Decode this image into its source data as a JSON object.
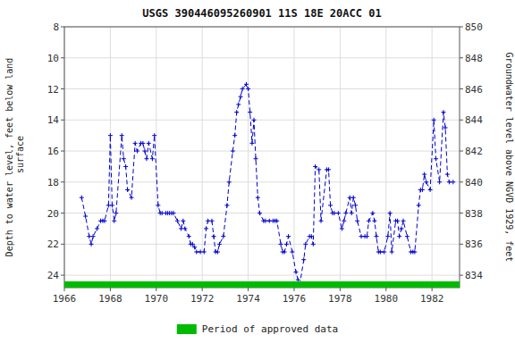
{
  "chart_data": {
    "type": "line",
    "title": "USGS 390446095260901 11S 18E 20ACC 01",
    "y_label": "Depth to water level, feet below land\n surface",
    "y2_label": "Groundwater level above NGVD 1929, feet",
    "xlim": [
      1966,
      1983.2
    ],
    "xticks": [
      1966,
      1968,
      1970,
      1972,
      1974,
      1976,
      1978,
      1980,
      1982
    ],
    "ylim": [
      24.8,
      8
    ],
    "yticks": [
      8,
      10,
      12,
      14,
      16,
      18,
      20,
      22,
      24
    ],
    "y2lim": [
      833.2,
      850
    ],
    "y2ticks": [
      834,
      836,
      838,
      840,
      842,
      844,
      846,
      848,
      850
    ],
    "grid": true,
    "legend": "bottom",
    "x": [
      1966.75,
      1966.92,
      1967.08,
      1967.17,
      1967.25,
      1967.42,
      1967.58,
      1967.67,
      1967.75,
      1967.92,
      1968.0,
      1968.08,
      1968.17,
      1968.25,
      1968.5,
      1968.58,
      1968.67,
      1968.75,
      1968.92,
      1969.08,
      1969.17,
      1969.33,
      1969.42,
      1969.5,
      1969.58,
      1969.67,
      1969.83,
      1969.92,
      1970.08,
      1970.17,
      1970.25,
      1970.42,
      1970.5,
      1970.58,
      1970.67,
      1970.75,
      1970.92,
      1971.08,
      1971.17,
      1971.25,
      1971.42,
      1971.5,
      1971.58,
      1971.67,
      1971.75,
      1971.92,
      1972.08,
      1972.17,
      1972.25,
      1972.42,
      1972.5,
      1972.58,
      1972.67,
      1972.75,
      1972.92,
      1973.08,
      1973.17,
      1973.33,
      1973.42,
      1973.5,
      1973.58,
      1973.67,
      1973.75,
      1973.92,
      1974.0,
      1974.08,
      1974.17,
      1974.25,
      1974.33,
      1974.42,
      1974.5,
      1974.67,
      1974.75,
      1974.92,
      1975.08,
      1975.17,
      1975.25,
      1975.42,
      1975.5,
      1975.58,
      1975.67,
      1975.75,
      1975.92,
      1976.08,
      1976.17,
      1976.25,
      1976.42,
      1976.5,
      1976.67,
      1976.75,
      1976.83,
      1976.92,
      1977.08,
      1977.17,
      1977.42,
      1977.5,
      1977.58,
      1977.67,
      1977.75,
      1977.92,
      1978.08,
      1978.17,
      1978.25,
      1978.42,
      1978.5,
      1978.58,
      1978.67,
      1978.75,
      1978.92,
      1979.08,
      1979.17,
      1979.25,
      1979.42,
      1979.5,
      1979.58,
      1979.67,
      1979.75,
      1979.92,
      1980.08,
      1980.17,
      1980.25,
      1980.42,
      1980.5,
      1980.58,
      1980.67,
      1980.75,
      1980.92,
      1981.08,
      1981.17,
      1981.25,
      1981.42,
      1981.5,
      1981.58,
      1981.67,
      1981.75,
      1981.92,
      1982.08,
      1982.17,
      1982.33,
      1982.5,
      1982.58,
      1982.67,
      1982.75,
      1982.92
    ],
    "series": [
      {
        "color": "#0000cc",
        "marker": "plus",
        "line_style": "dashed",
        "values": [
          19.0,
          20.2,
          21.5,
          22.0,
          21.5,
          21.0,
          20.5,
          20.5,
          20.5,
          19.5,
          15.0,
          19.5,
          20.5,
          20.0,
          15.0,
          16.5,
          17.0,
          18.5,
          19.0,
          15.5,
          16.0,
          15.5,
          15.5,
          16.0,
          16.5,
          15.5,
          16.5,
          15.0,
          19.5,
          20.0,
          20.0,
          20.0,
          20.0,
          20.0,
          20.0,
          20.0,
          20.5,
          21.0,
          20.5,
          21.0,
          21.5,
          22.0,
          22.0,
          22.2,
          22.5,
          22.5,
          22.5,
          21.0,
          20.5,
          20.5,
          21.5,
          22.5,
          22.5,
          22.0,
          21.5,
          19.5,
          18.0,
          16.0,
          15.0,
          13.5,
          13.0,
          12.5,
          12.0,
          11.7,
          12.0,
          13.5,
          15.5,
          14.0,
          16.5,
          19.0,
          20.0,
          20.5,
          20.5,
          20.5,
          20.5,
          20.5,
          20.5,
          22.0,
          22.5,
          22.5,
          22.0,
          21.5,
          22.5,
          23.8,
          24.3,
          24.55,
          23.0,
          22.0,
          21.5,
          21.5,
          22.0,
          17.0,
          17.2,
          20.5,
          17.2,
          17.2,
          19.5,
          20.0,
          20.0,
          20.0,
          21.0,
          20.5,
          20.0,
          19.0,
          20.0,
          19.0,
          19.5,
          20.5,
          21.5,
          21.5,
          21.5,
          20.5,
          20.0,
          20.5,
          21.5,
          22.5,
          22.5,
          22.5,
          21.5,
          20.0,
          22.5,
          20.5,
          20.5,
          21.5,
          21.0,
          20.5,
          21.5,
          22.5,
          22.5,
          22.5,
          19.5,
          18.5,
          18.5,
          17.5,
          18.0,
          18.5,
          14.0,
          16.5,
          18.0,
          13.5,
          14.5,
          17.5,
          18.0,
          18.0
        ]
      },
      {
        "name": "Period of approved data",
        "color": "#00bb00",
        "type": "span"
      }
    ]
  }
}
